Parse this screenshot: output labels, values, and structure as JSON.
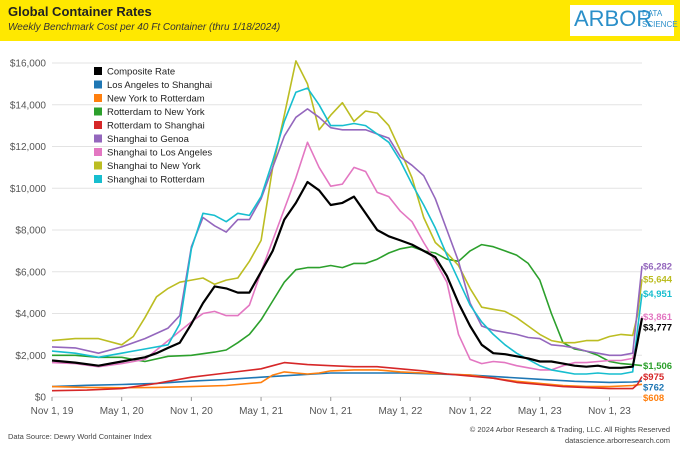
{
  "header": {
    "title": "Global Container Rates",
    "subtitle": "Weekly Benchmark Cost per 40 Ft Container (thru 1/18/2024)",
    "logo_main": "ARBOR",
    "logo_sub1": "DATA",
    "logo_sub2": "SCIENCE"
  },
  "footer": {
    "source": "Data Source: Dewry World Container Index",
    "copyright": "© 2024 Arbor Research & Trading, LLC. All Rights Reserved",
    "website": "datascience.arborresearch.com"
  },
  "colors": {
    "header_bg": "#ffe800",
    "grid": "#e3e3e3"
  },
  "chart_data": {
    "type": "line",
    "title": "Global Container Rates",
    "xlabel": "",
    "ylabel": "",
    "ylim": [
      0,
      16000
    ],
    "yticks": [
      0,
      2000,
      4000,
      6000,
      8000,
      10000,
      12000,
      14000,
      16000
    ],
    "ytick_labels": [
      "$0",
      "$2,000",
      "$4,000",
      "$6,000",
      "$8,000",
      "$10,000",
      "$12,000",
      "$14,000",
      "$16,000"
    ],
    "xticks": [
      0,
      6,
      12,
      18,
      24,
      30,
      36,
      42,
      48
    ],
    "xtick_labels": [
      "Nov 1, 19",
      "May 1, 20",
      "Nov 1, 20",
      "May 1, 21",
      "Nov 1, 21",
      "May 1, 22",
      "Nov 1, 22",
      "May 1, 23",
      "Nov 1, 23"
    ],
    "xlim": [
      0,
      50.8
    ],
    "legend_position": "top-left",
    "grid": true,
    "series": [
      {
        "name": "Composite Rate",
        "color": "#000000",
        "end_label": "$3,777",
        "x": [
          0,
          2,
          4,
          6,
          8,
          9,
          10,
          11,
          12,
          13,
          14,
          15,
          16,
          17,
          18,
          19,
          20,
          21,
          22,
          23,
          24,
          25,
          26,
          27,
          28,
          29,
          30,
          31,
          32,
          33,
          34,
          35,
          36,
          37,
          38,
          39,
          40,
          41,
          42,
          43,
          44,
          45,
          46,
          47,
          48,
          49,
          50,
          50.4,
          50.8
        ],
        "y": [
          1750,
          1650,
          1500,
          1700,
          1900,
          2100,
          2350,
          2600,
          3500,
          4500,
          5300,
          5200,
          5000,
          5000,
          6000,
          7000,
          8500,
          9300,
          10300,
          9900,
          9200,
          9300,
          9600,
          8800,
          8000,
          7700,
          7500,
          7300,
          7000,
          6700,
          5800,
          4500,
          3400,
          2500,
          2100,
          2050,
          1950,
          1850,
          1700,
          1700,
          1600,
          1500,
          1450,
          1500,
          1400,
          1400,
          1450,
          2600,
          3777
        ]
      },
      {
        "name": "Los Angeles to Shanghai",
        "color": "#1f77b4",
        "end_label": "$762",
        "x": [
          0,
          3,
          6,
          9,
          12,
          15,
          18,
          21,
          24,
          27,
          30,
          33,
          36,
          39,
          42,
          45,
          48,
          50,
          50.8
        ],
        "y": [
          500,
          560,
          600,
          650,
          760,
          840,
          950,
          1050,
          1150,
          1150,
          1150,
          1100,
          1050,
          950,
          850,
          750,
          700,
          720,
          762
        ]
      },
      {
        "name": "New York to Rotterdam",
        "color": "#ff7f0e",
        "end_label": "$608",
        "x": [
          0,
          3,
          6,
          9,
          12,
          15,
          18,
          19,
          20,
          21,
          22,
          23,
          24,
          26,
          28,
          30,
          32,
          34,
          36,
          38,
          40,
          42,
          44,
          46,
          48,
          50,
          50.8
        ],
        "y": [
          500,
          460,
          440,
          460,
          500,
          550,
          700,
          1050,
          1200,
          1150,
          1100,
          1150,
          1250,
          1300,
          1300,
          1200,
          1150,
          1100,
          1050,
          900,
          750,
          650,
          550,
          500,
          500,
          550,
          608
        ]
      },
      {
        "name": "Rotterdam to New York",
        "color": "#2ca02c",
        "end_label": "$1,506",
        "x": [
          0,
          2,
          4,
          6,
          8,
          10,
          12,
          14,
          15,
          16,
          17,
          18,
          19,
          20,
          21,
          22,
          23,
          24,
          25,
          26,
          27,
          28,
          29,
          30,
          31,
          32,
          33,
          34,
          35,
          36,
          37,
          38,
          39,
          40,
          41,
          42,
          43,
          44,
          45,
          46,
          47,
          48,
          49,
          50,
          50.8
        ],
        "y": [
          2000,
          2000,
          1900,
          1900,
          1700,
          1950,
          2000,
          2150,
          2250,
          2600,
          3000,
          3700,
          4600,
          5500,
          6100,
          6200,
          6200,
          6300,
          6200,
          6400,
          6400,
          6600,
          6900,
          7100,
          7200,
          7000,
          6900,
          6600,
          6500,
          7000,
          7300,
          7200,
          7000,
          6800,
          6400,
          5600,
          4000,
          2600,
          2300,
          2200,
          2000,
          1700,
          1600,
          1550,
          1506
        ]
      },
      {
        "name": "Rotterdam to Shanghai",
        "color": "#d62728",
        "end_label": "$975",
        "x": [
          0,
          3,
          6,
          9,
          12,
          15,
          18,
          19,
          20,
          21,
          22,
          24,
          26,
          28,
          30,
          32,
          34,
          36,
          38,
          40,
          42,
          44,
          46,
          48,
          50,
          50.4,
          50.8
        ],
        "y": [
          300,
          330,
          400,
          650,
          950,
          1150,
          1350,
          1500,
          1650,
          1600,
          1550,
          1500,
          1450,
          1450,
          1350,
          1250,
          1100,
          1000,
          900,
          700,
          600,
          500,
          450,
          400,
          400,
          600,
          975
        ]
      },
      {
        "name": "Shanghai to Genoa",
        "color": "#9467bd",
        "end_label": "$6,282",
        "x": [
          0,
          2,
          4,
          6,
          8,
          10,
          11,
          12,
          13,
          14,
          15,
          16,
          17,
          18,
          19,
          20,
          21,
          22,
          23,
          24,
          25,
          26,
          27,
          28,
          29,
          30,
          31,
          32,
          33,
          34,
          35,
          36,
          37,
          38,
          39,
          40,
          41,
          42,
          43,
          44,
          45,
          46,
          47,
          48,
          49,
          50,
          50.4,
          50.8
        ],
        "y": [
          2400,
          2350,
          2100,
          2400,
          2800,
          3300,
          3900,
          7200,
          8600,
          8200,
          7900,
          8500,
          8500,
          9500,
          11000,
          12500,
          13400,
          13800,
          13400,
          12900,
          12800,
          12800,
          12800,
          12600,
          12400,
          11500,
          11100,
          10600,
          9500,
          8000,
          6500,
          4500,
          3400,
          3200,
          3100,
          3000,
          2850,
          2800,
          2500,
          2450,
          2350,
          2200,
          2100,
          2000,
          2000,
          2100,
          4200,
          6282
        ]
      },
      {
        "name": "Shanghai to Los Angeles",
        "color": "#e377c2",
        "end_label": "$3,861",
        "x": [
          0,
          2,
          4,
          6,
          8,
          10,
          12,
          13,
          14,
          15,
          16,
          17,
          18,
          19,
          20,
          21,
          22,
          23,
          24,
          25,
          26,
          27,
          28,
          29,
          30,
          31,
          32,
          33,
          34,
          35,
          36,
          37,
          38,
          39,
          40,
          41,
          42,
          43,
          44,
          45,
          46,
          47,
          48,
          49,
          50,
          50.4,
          50.8
        ],
        "y": [
          1650,
          1600,
          1450,
          1600,
          1800,
          2700,
          3600,
          4000,
          4100,
          3900,
          3900,
          4400,
          6000,
          7500,
          9000,
          10500,
          12200,
          11000,
          10100,
          10200,
          11000,
          10800,
          9800,
          9600,
          8900,
          8400,
          7400,
          6500,
          5500,
          3000,
          1800,
          1600,
          1700,
          1650,
          1500,
          1400,
          1300,
          1300,
          1500,
          1650,
          1650,
          1700,
          1750,
          1750,
          1850,
          2800,
          3861
        ]
      },
      {
        "name": "Shanghai to New York",
        "color": "#bcbd22",
        "end_label": "$5,644",
        "x": [
          0,
          2,
          4,
          6,
          7,
          8,
          9,
          10,
          11,
          12,
          13,
          14,
          15,
          16,
          17,
          18,
          19,
          20,
          21,
          22,
          23,
          24,
          25,
          26,
          27,
          28,
          29,
          30,
          31,
          32,
          33,
          34,
          35,
          36,
          37,
          38,
          39,
          40,
          41,
          42,
          43,
          44,
          45,
          46,
          47,
          48,
          49,
          50,
          50.4,
          50.8
        ],
        "y": [
          2700,
          2800,
          2800,
          2500,
          2900,
          3800,
          4800,
          5200,
          5500,
          5600,
          5700,
          5400,
          5600,
          5700,
          6500,
          7500,
          11000,
          13500,
          16100,
          15000,
          12800,
          13500,
          14100,
          13200,
          13700,
          13600,
          13000,
          11800,
          10500,
          8600,
          7400,
          6900,
          6300,
          5200,
          4300,
          4200,
          4100,
          3800,
          3400,
          3000,
          2700,
          2600,
          2600,
          2700,
          2700,
          2900,
          3000,
          2950,
          3900,
          5644
        ]
      },
      {
        "name": "Shanghai to Rotterdam",
        "color": "#17becf",
        "end_label": "$4,951",
        "x": [
          0,
          2,
          4,
          6,
          8,
          10,
          11,
          12,
          13,
          14,
          15,
          16,
          17,
          18,
          19,
          20,
          21,
          22,
          23,
          24,
          25,
          26,
          27,
          28,
          29,
          30,
          31,
          32,
          33,
          34,
          35,
          36,
          37,
          38,
          39,
          40,
          41,
          42,
          43,
          44,
          45,
          46,
          47,
          48,
          49,
          50,
          50.4,
          50.8
        ],
        "y": [
          2200,
          2100,
          1900,
          2100,
          2300,
          2500,
          3500,
          7100,
          8800,
          8700,
          8400,
          8800,
          8700,
          9600,
          11300,
          13200,
          14600,
          14800,
          14000,
          13000,
          13000,
          13100,
          13000,
          12600,
          12200,
          11300,
          10200,
          9200,
          8100,
          6800,
          5600,
          4400,
          3600,
          3000,
          2500,
          2100,
          1800,
          1500,
          1300,
          1200,
          1100,
          1100,
          1150,
          1100,
          1100,
          1200,
          3200,
          4951
        ]
      }
    ]
  }
}
